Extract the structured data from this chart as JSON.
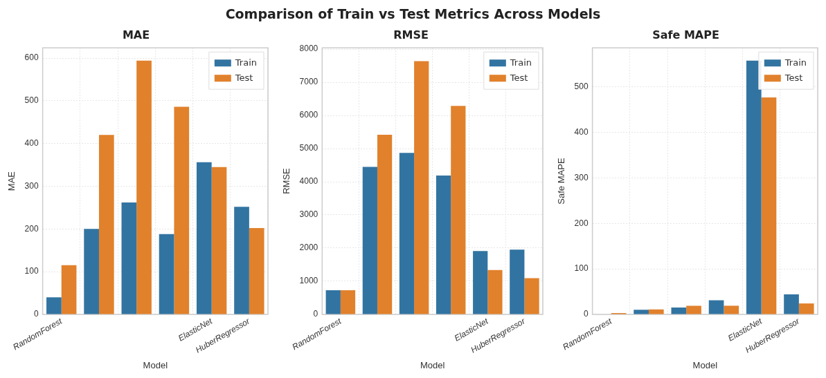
{
  "chart_data": [
    {
      "type": "bar",
      "title": "MAE",
      "xlabel": "Model",
      "ylabel": "MAE",
      "annotations": [
        "Comparison of Train vs Test Metrics Across Models"
      ],
      "categories": [
        "RandomForest",
        null,
        null,
        null,
        "ElasticNet",
        "HuberRegressor"
      ],
      "series": [
        {
          "name": "Train",
          "color": "#3274a1",
          "values": [
            40,
            200,
            262,
            188,
            356,
            252
          ]
        },
        {
          "name": "Test",
          "color": "#e1812c",
          "values": [
            115,
            420,
            594,
            486,
            345,
            202
          ]
        }
      ],
      "ylim": [
        0,
        624
      ],
      "yticks": [
        0,
        100,
        200,
        300,
        400,
        500,
        600
      ],
      "grid": true,
      "legend": "top right"
    },
    {
      "type": "bar",
      "title": "RMSE",
      "xlabel": "Model",
      "ylabel": "RMSE",
      "categories": [
        "RandomForest",
        null,
        null,
        null,
        "ElasticNet",
        "HuberRegressor"
      ],
      "series": [
        {
          "name": "Train",
          "color": "#3274a1",
          "values": [
            730,
            4450,
            4870,
            4190,
            1910,
            1950
          ]
        },
        {
          "name": "Test",
          "color": "#e1812c",
          "values": [
            730,
            5420,
            7640,
            6290,
            1340,
            1090
          ]
        }
      ],
      "ylim": [
        0,
        8040
      ],
      "yticks": [
        0,
        1000,
        2000,
        3000,
        4000,
        5000,
        6000,
        7000,
        8000
      ],
      "grid": true,
      "legend": "top right"
    },
    {
      "type": "bar",
      "title": "Safe MAPE",
      "xlabel": "Model",
      "ylabel": "Safe MAPE",
      "categories": [
        "RandomForest",
        null,
        null,
        null,
        "ElasticNet",
        "HuberRegressor"
      ],
      "series": [
        {
          "name": "Train",
          "color": "#3274a1",
          "values": [
            0,
            10,
            15,
            31,
            558,
            44
          ]
        },
        {
          "name": "Test",
          "color": "#e1812c",
          "values": [
            3,
            11,
            19,
            19,
            477,
            24
          ]
        }
      ],
      "ylim": [
        0,
        586
      ],
      "yticks": [
        0,
        100,
        200,
        300,
        400,
        500
      ],
      "grid": true,
      "legend": "top right"
    }
  ]
}
